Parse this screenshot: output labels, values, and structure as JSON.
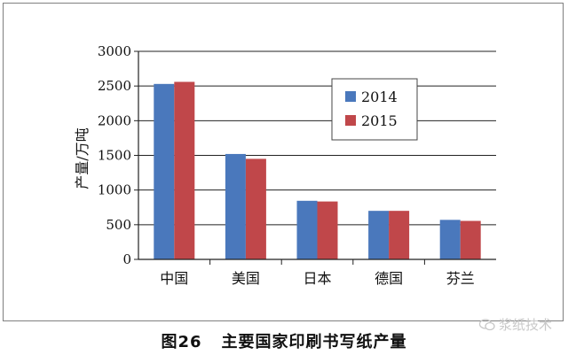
{
  "chart_data": {
    "type": "bar",
    "categories": [
      "中国",
      "美国",
      "日本",
      "德国",
      "芬兰"
    ],
    "series": [
      {
        "name": "2014",
        "values": [
          2530,
          1520,
          845,
          700,
          570
        ],
        "color": "#4a78bc"
      },
      {
        "name": "2015",
        "values": [
          2560,
          1450,
          835,
          700,
          555
        ],
        "color": "#c0474a"
      }
    ],
    "ylabel": "产量/万吨",
    "ylim": [
      0,
      3000
    ],
    "yticks": [
      0,
      500,
      1000,
      1500,
      2000,
      2500,
      3000
    ],
    "grid": true,
    "legend_position": "top-right"
  },
  "caption": {
    "figure_number": "图26",
    "title": "主要国家印刷书写纸产量"
  },
  "watermark": {
    "icon": "wechat-icon",
    "text": "浆纸技术"
  }
}
